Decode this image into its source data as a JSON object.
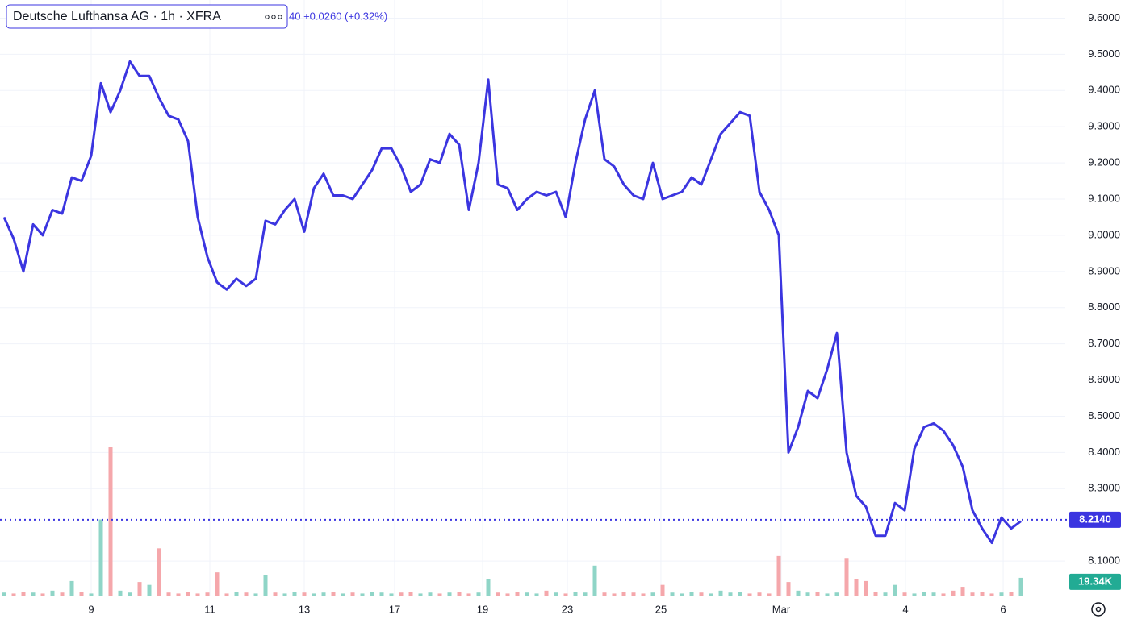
{
  "chart_data": {
    "type": "line",
    "title": "Deutsche Lufthansa AG · 1h · XFRA",
    "subtitle": "40 +0.0260 (+0.32%)",
    "series": [
      {
        "name": "Price",
        "color": "#3b35e0",
        "values": [
          9.05,
          8.99,
          8.9,
          9.03,
          9.0,
          9.07,
          9.06,
          9.16,
          9.15,
          9.22,
          9.42,
          9.34,
          9.4,
          9.48,
          9.44,
          9.44,
          9.38,
          9.33,
          9.32,
          9.26,
          9.05,
          8.94,
          8.87,
          8.85,
          8.88,
          8.86,
          8.88,
          9.04,
          9.03,
          9.07,
          9.1,
          9.01,
          9.13,
          9.17,
          9.11,
          9.11,
          9.1,
          9.14,
          9.18,
          9.24,
          9.24,
          9.19,
          9.12,
          9.14,
          9.21,
          9.2,
          9.28,
          9.25,
          9.07,
          9.2,
          9.43,
          9.14,
          9.13,
          9.07,
          9.1,
          9.12,
          9.11,
          9.12,
          9.05,
          9.2,
          9.32,
          9.4,
          9.21,
          9.19,
          9.14,
          9.11,
          9.1,
          9.2,
          9.1,
          9.11,
          9.12,
          9.16,
          9.14,
          9.21,
          9.28,
          9.31,
          9.34,
          9.33,
          9.12,
          9.07,
          9.0,
          8.4,
          8.47,
          8.57,
          8.55,
          8.63,
          8.73,
          8.4,
          8.28,
          8.25,
          8.17,
          8.17,
          8.26,
          8.24,
          8.41,
          8.47,
          8.48,
          8.46,
          8.42,
          8.36,
          8.24,
          8.19,
          8.15,
          8.22,
          8.19,
          8.21
        ]
      },
      {
        "name": "Volume",
        "axis": "y2",
        "up_color": "#8fd5c7",
        "down_color": "#f5a7ab",
        "values": [
          4,
          3,
          5,
          4,
          3,
          6,
          4,
          16,
          5,
          3,
          80,
          155,
          6,
          4,
          15,
          12,
          50,
          4,
          3,
          5,
          3,
          4,
          25,
          3,
          5,
          4,
          3,
          22,
          4,
          3,
          5,
          4,
          3,
          4,
          5,
          3,
          4,
          3,
          5,
          4,
          3,
          4,
          5,
          3,
          4,
          3,
          4,
          5,
          3,
          4,
          18,
          4,
          3,
          5,
          4,
          3,
          6,
          4,
          3,
          5,
          4,
          32,
          4,
          3,
          5,
          4,
          3,
          4,
          12,
          4,
          3,
          5,
          4,
          3,
          6,
          4,
          5,
          3,
          4,
          3,
          42,
          15,
          6,
          4,
          5,
          3,
          4,
          40,
          18,
          16,
          5,
          4,
          12,
          4,
          3,
          5,
          4,
          3,
          6,
          10,
          4,
          5,
          3,
          4,
          5,
          19.34
        ],
        "value_labels": {
          "105": "19.34K"
        }
      }
    ],
    "last_price": {
      "value": 8.214,
      "label": "8.2140"
    },
    "ylim": [
      8.0,
      9.65
    ],
    "y2lim": [
      0,
      620
    ],
    "xlim": [
      0,
      105
    ],
    "yticks": [
      {
        "value": 8.1,
        "label": "8.1000"
      },
      {
        "value": 8.3,
        "label": "8.3000"
      },
      {
        "value": 8.4,
        "label": "8.4000"
      },
      {
        "value": 8.5,
        "label": "8.5000"
      },
      {
        "value": 8.6,
        "label": "8.6000"
      },
      {
        "value": 8.7,
        "label": "8.7000"
      },
      {
        "value": 8.8,
        "label": "8.8000"
      },
      {
        "value": 8.9,
        "label": "8.9000"
      },
      {
        "value": 9.0,
        "label": "9.0000"
      },
      {
        "value": 9.1,
        "label": "9.1000"
      },
      {
        "value": 9.2,
        "label": "9.2000"
      },
      {
        "value": 9.3,
        "label": "9.3000"
      },
      {
        "value": 9.4,
        "label": "9.4000"
      },
      {
        "value": 9.5,
        "label": "9.5000"
      },
      {
        "value": 9.6,
        "label": "9.6000"
      }
    ],
    "xticks": [
      {
        "value": 9.0,
        "label": "9"
      },
      {
        "value": 21.25,
        "label": "11"
      },
      {
        "value": 31.0,
        "label": "13"
      },
      {
        "value": 40.33,
        "label": "17"
      },
      {
        "value": 49.42,
        "label": "19"
      },
      {
        "value": 58.17,
        "label": "23"
      },
      {
        "value": 67.83,
        "label": "25"
      },
      {
        "value": 80.25,
        "label": "Mar"
      },
      {
        "value": 93.08,
        "label": "4"
      },
      {
        "value": 103.17,
        "label": "6"
      }
    ],
    "grid": true
  }
}
